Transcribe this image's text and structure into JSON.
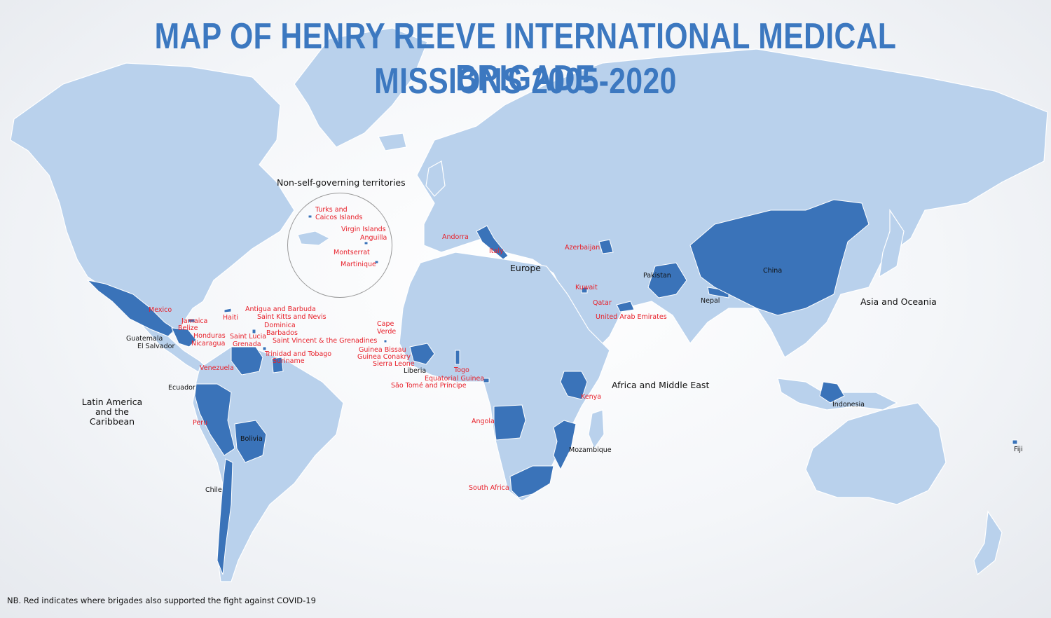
{
  "title_line1": "MAP OF HENRY REEVE INTERNATIONAL MEDICAL BRIGADE",
  "title_line2": "MISSIONS 2005-2020",
  "regions": {
    "latam": [
      "Latin America",
      "and the Caribbean"
    ],
    "europe": "Europe",
    "africa": "Africa and Middle East",
    "asia": "Asia and Oceania",
    "territories": "Non-self-governing territories"
  },
  "note": "NB. Red indicates where brigades also supported the fight against COVID-19",
  "covid_countries": [
    "Mexico",
    "Jamaica",
    "Belize",
    "Haiti",
    "Honduras",
    "Nicaragua",
    "Antigua and Barbuda",
    "Saint Kitts and Nevis",
    "Dominica",
    "Barbados",
    "Saint Lucia",
    "Grenada",
    "Saint Vincent & the Grenadines",
    "Trinidad and Tobago",
    "Suriname",
    "Venezuela",
    "Peru",
    "Andorra",
    "Italy",
    "Azerbaijan",
    "Kuwait",
    "Qatar",
    "United Arab Emirates",
    "Cape Verde",
    "Guinea Bissau",
    "Guinea Conakry",
    "Sierra Leone",
    "Togo",
    "Equatorial Guinea",
    "São Tomé and Príncipe",
    "Angola",
    "Kenya",
    "South Africa"
  ],
  "covid_territories": [
    "Turks and Caicos Islands",
    "Virgin Islands",
    "Anguilla",
    "Montserrat",
    "Martinique"
  ],
  "other_countries": [
    "Guatemala",
    "El Salvador",
    "Ecuador",
    "Bolivia",
    "Chile",
    "Liberia",
    "Mozambique",
    "Pakistan",
    "Nepal",
    "China",
    "Indonesia",
    "Fiji"
  ],
  "colors": {
    "land": "#b9d1ec",
    "mission": "#3a73b9",
    "covid_label": "#e8202a",
    "title": "#3c78c0"
  }
}
